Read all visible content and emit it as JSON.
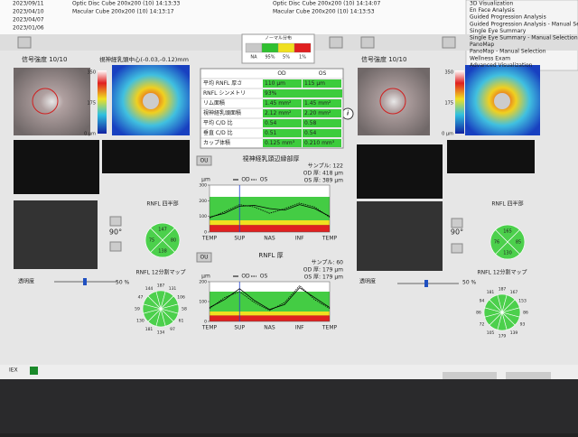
{
  "top_list": {
    "left": [
      "Optic Disc Cube 200x200 (10) 14:13:33",
      "Macular Cube 200x200 (10) 14:13:17"
    ],
    "dates": [
      "2023/09/11",
      "2023/04/10",
      "2023/04/07",
      "2023/01/06"
    ],
    "right": [
      "Optic Disc Cube 200x200 (10) 14:14:07",
      "Macular Cube 200x200 (10) 14:13:53"
    ],
    "menu": [
      "3D Visualization",
      "En Face Analysis",
      "Guided Progression Analysis",
      "Guided Progression Analysis - Manual Selection",
      "Single Eye Summary",
      "Single Eye Summary - Manual Selection",
      "PanoMap",
      "PanoMap - Manual Selection",
      "Wellness Exam",
      "Advanced Visualization"
    ]
  },
  "legend": {
    "title": "ノーマル分布",
    "labels": [
      "NA",
      "95%",
      "5%",
      "1%"
    ]
  },
  "left_eye": {
    "signal": "信号強度 10/10",
    "map_label": "視神経乳頭中心(-0.03,-0.12)mm",
    "scale": [
      "350",
      "175",
      "0 µm"
    ],
    "quadrant_title": "RNFL 四半部",
    "quadrants": [
      "147",
      "80",
      "138",
      "75"
    ],
    "degree": "90°",
    "transparency": "透明度",
    "transparency_value": "50 %",
    "clock_title": "RNFL 12分割マップ",
    "clock": [
      "187",
      "131",
      "106",
      "58",
      "61",
      "97",
      "134",
      "181",
      "130",
      "59",
      "47",
      "144"
    ]
  },
  "right_eye": {
    "signal": "信号強度 10/10",
    "scale": [
      "350",
      "175",
      "0 µm"
    ],
    "quadrant_title": "RNFL 四半部",
    "quadrants": [
      "165",
      "85",
      "130",
      "76"
    ],
    "degree": "90°",
    "transparency": "透明度",
    "transparency_value": "50 %",
    "clock_title": "RNFL 12分割マップ",
    "clock": [
      "187",
      "167",
      "153",
      "86",
      "93",
      "139",
      "179",
      "105",
      "72",
      "86",
      "94",
      "181"
    ]
  },
  "table": {
    "header": [
      "OD",
      "OS"
    ],
    "rows": [
      [
        "平均 RNFL 厚さ",
        "110 µm",
        "115 µm"
      ],
      [
        "RNFL シンメトリ",
        "93%",
        ""
      ],
      [
        "リム面積",
        "1.45 mm²",
        "1.45 mm²"
      ],
      [
        "視神経乳頭面積",
        "2.12 mm²",
        "2.20 mm²"
      ],
      [
        "平均 C/D 比",
        "0.54",
        "0.58"
      ],
      [
        "垂直 C/D 比",
        "0.51",
        "0.54"
      ],
      [
        "カップ体積",
        "0.125 mm³",
        "0.210 mm³"
      ]
    ]
  },
  "charts": [
    {
      "button": "OU",
      "title": "視神経乳頭辺縁部厚",
      "stats": [
        "サンプル: 122",
        "OD 厚: 418 µm",
        "OS 厚: 389 µm"
      ],
      "y_label": "µm",
      "categories": [
        "TEMP",
        null,
        "SUP",
        null,
        "NAS",
        null,
        "INF",
        null,
        "TEMP"
      ],
      "ylim": [
        0,
        300
      ],
      "yticks": [
        0,
        100,
        200,
        300
      ],
      "series": [
        {
          "name": "OD",
          "color": "#000000",
          "values": [
            95,
            120,
            165,
            170,
            150,
            140,
            175,
            150,
            100
          ]
        },
        {
          "name": "OS",
          "color": "#000000",
          "values": [
            90,
            130,
            175,
            160,
            120,
            150,
            185,
            160,
            95
          ]
        }
      ]
    },
    {
      "button": "OU",
      "title": "RNFL 厚",
      "stats": [
        "サンプル: 60",
        "OD 厚: 179 µm",
        "OS 厚: 179 µm"
      ],
      "y_label": "µm",
      "categories": [
        "TEMP",
        null,
        "SUP",
        null,
        "NAS",
        null,
        "INF",
        null,
        "TEMP"
      ],
      "ylim": [
        0,
        200
      ],
      "yticks": [
        0,
        100,
        200
      ],
      "series": [
        {
          "name": "OD",
          "color": "#000000",
          "values": [
            70,
            110,
            165,
            105,
            60,
            85,
            170,
            120,
            70
          ]
        },
        {
          "name": "OS",
          "color": "#000000",
          "values": [
            65,
            120,
            150,
            95,
            55,
            95,
            180,
            110,
            65
          ]
        }
      ]
    }
  ],
  "status": "IEX"
}
